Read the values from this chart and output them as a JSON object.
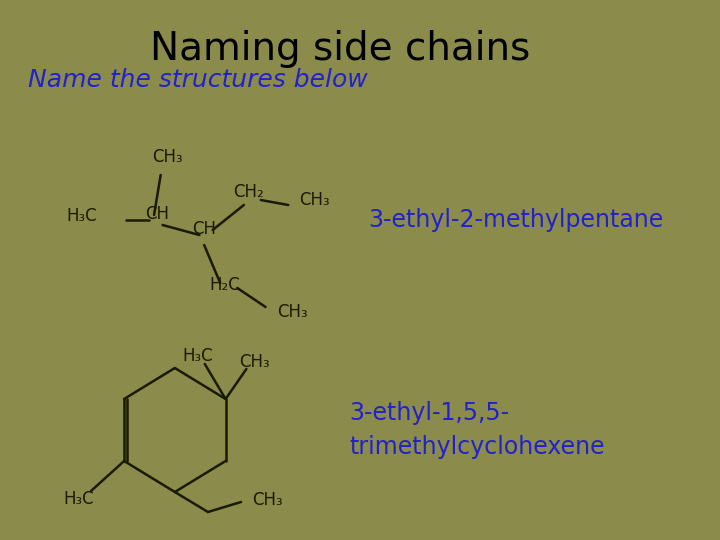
{
  "background_color": "#8B8B4B",
  "title": "Naming side chains",
  "title_color": "#000000",
  "title_fontsize": 28,
  "subtitle": "Name the structures below",
  "subtitle_color": "#2222CC",
  "subtitle_fontsize": 18,
  "label1": "3-ethyl-2-methylpentane",
  "label2": "3-ethyl-1,5,5-\ntrimethylcyclohexene",
  "label_color": "#2222CC",
  "label_fontsize": 17,
  "line_color": "#1A1A00",
  "text_color": "#1A1A00"
}
